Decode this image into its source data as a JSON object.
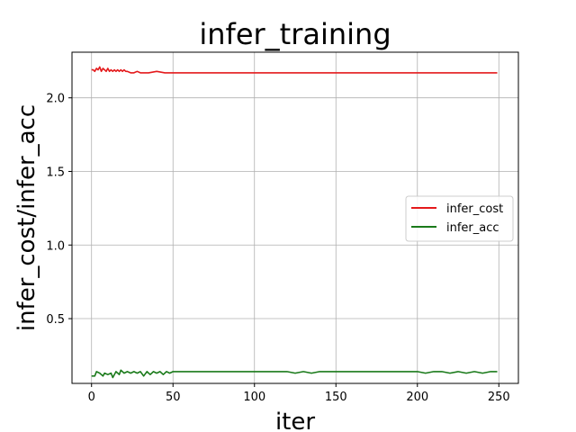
{
  "chart_data": {
    "type": "line",
    "title": "infer_training",
    "xlabel": "iter",
    "ylabel": "infer_cost/infer_acc",
    "xlim": [
      -12,
      262
    ],
    "ylim": [
      0.06,
      2.31
    ],
    "xticks": [
      0,
      50,
      100,
      150,
      200,
      250
    ],
    "yticks": [
      0.5,
      1.0,
      1.5,
      2.0
    ],
    "xtick_labels": [
      "0",
      "50",
      "100",
      "150",
      "200",
      "250"
    ],
    "ytick_labels": [
      "0.5",
      "1.0",
      "1.5",
      "2.0"
    ],
    "grid": true,
    "legend_position": "center-right",
    "series": [
      {
        "name": "infer_cost",
        "color": "#e41a1c",
        "x": [
          0,
          1,
          2,
          3,
          4,
          5,
          6,
          7,
          8,
          9,
          10,
          11,
          12,
          13,
          14,
          15,
          16,
          17,
          18,
          19,
          20,
          21,
          22,
          24,
          26,
          28,
          30,
          35,
          40,
          45,
          48,
          50,
          60,
          80,
          100,
          120,
          140,
          160,
          180,
          200,
          220,
          240,
          249
        ],
        "y": [
          2.19,
          2.19,
          2.18,
          2.2,
          2.19,
          2.21,
          2.18,
          2.2,
          2.19,
          2.18,
          2.2,
          2.18,
          2.19,
          2.18,
          2.19,
          2.18,
          2.19,
          2.18,
          2.19,
          2.18,
          2.19,
          2.18,
          2.18,
          2.17,
          2.17,
          2.18,
          2.17,
          2.17,
          2.18,
          2.17,
          2.17,
          2.17,
          2.17,
          2.17,
          2.17,
          2.17,
          2.17,
          2.17,
          2.17,
          2.17,
          2.17,
          2.17,
          2.17
        ]
      },
      {
        "name": "infer_acc",
        "color": "#1a7a1a",
        "x": [
          0,
          2,
          3,
          5,
          7,
          8,
          10,
          12,
          13,
          15,
          17,
          18,
          20,
          22,
          24,
          26,
          28,
          30,
          32,
          34,
          36,
          38,
          40,
          42,
          44,
          46,
          48,
          50,
          60,
          70,
          80,
          90,
          100,
          110,
          120,
          125,
          130,
          135,
          140,
          150,
          160,
          170,
          180,
          190,
          200,
          205,
          210,
          215,
          220,
          225,
          230,
          235,
          240,
          245,
          249
        ],
        "y": [
          0.11,
          0.11,
          0.14,
          0.13,
          0.11,
          0.13,
          0.12,
          0.13,
          0.1,
          0.14,
          0.12,
          0.15,
          0.13,
          0.14,
          0.13,
          0.14,
          0.13,
          0.14,
          0.11,
          0.14,
          0.12,
          0.14,
          0.13,
          0.14,
          0.12,
          0.14,
          0.13,
          0.14,
          0.14,
          0.14,
          0.14,
          0.14,
          0.14,
          0.14,
          0.14,
          0.13,
          0.14,
          0.13,
          0.14,
          0.14,
          0.14,
          0.14,
          0.14,
          0.14,
          0.14,
          0.13,
          0.14,
          0.14,
          0.13,
          0.14,
          0.13,
          0.14,
          0.13,
          0.14,
          0.14
        ]
      }
    ]
  }
}
